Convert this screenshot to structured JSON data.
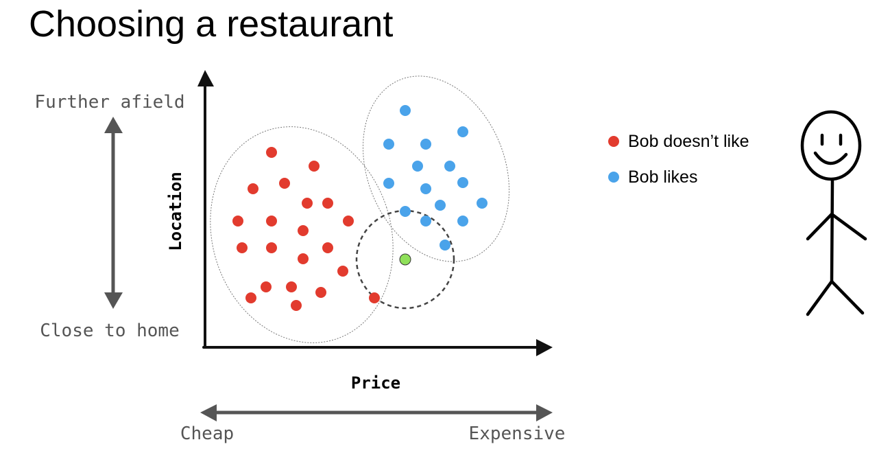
{
  "title": "Choosing a restaurant",
  "axes": {
    "x_label": "Price",
    "y_label": "Location"
  },
  "scales": {
    "y_top": "Further afield",
    "y_bottom": "Close to home",
    "x_left": "Cheap",
    "x_right": "Expensive"
  },
  "legend": {
    "dislike_label": "Bob doesn’t like",
    "like_label": "Bob likes"
  },
  "colors": {
    "dislike": "#e23b2e",
    "like": "#4aa3ea",
    "query": "#8fe05a",
    "arrow_gray": "#555555",
    "axis": "#111111"
  },
  "icons": {
    "person": "stick-figure-icon"
  }
}
